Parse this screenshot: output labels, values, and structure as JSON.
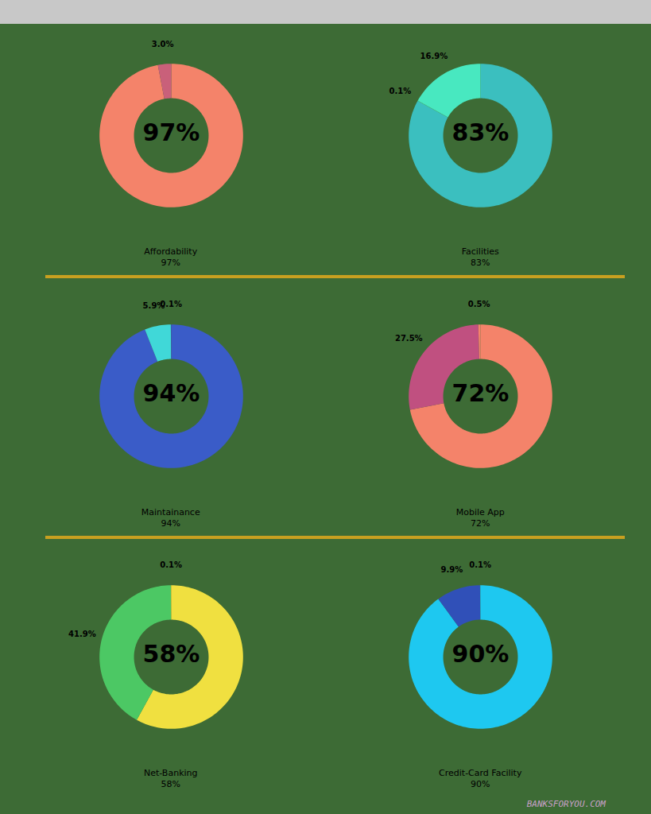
{
  "chart_data": [
    {
      "type": "donut",
      "title": "Affordability",
      "subtitle": "97%",
      "annotations": [
        "97%"
      ],
      "values": [
        97,
        3
      ],
      "colors": [
        "#F4836A",
        "#C9607A"
      ],
      "data_labels": true,
      "value_labels": [
        null,
        "3.0%"
      ]
    },
    {
      "type": "donut",
      "title": "Facilities",
      "subtitle": "83%",
      "annotations": [
        "83%"
      ],
      "values": [
        83,
        0.1,
        16.9
      ],
      "colors": [
        "#3BBFBF",
        "#48E8B0",
        "#48E8C0"
      ],
      "data_labels": true,
      "value_labels": [
        null,
        "0.1%",
        "16.9%"
      ]
    },
    {
      "type": "donut",
      "title": "Maintainance",
      "subtitle": "94%",
      "annotations": [
        "94%"
      ],
      "values": [
        94,
        5.9,
        0.1
      ],
      "colors": [
        "#3A5CC8",
        "#40D8D8",
        "#3A5CC8"
      ],
      "data_labels": true,
      "value_labels": [
        null,
        "5.9%",
        "0.1%"
      ]
    },
    {
      "type": "donut",
      "title": "Mobile App",
      "subtitle": "72%",
      "annotations": [
        "72%"
      ],
      "values": [
        72,
        27.5,
        0.5
      ],
      "colors": [
        "#F4836A",
        "#C05080",
        "#F4836A"
      ],
      "data_labels": true,
      "value_labels": [
        null,
        "27.5%",
        "0.5%"
      ]
    },
    {
      "type": "donut",
      "title": "Net-Banking",
      "subtitle": "58%",
      "annotations": [
        "58%"
      ],
      "values": [
        58,
        41.9,
        0.1
      ],
      "colors": [
        "#F0E040",
        "#4CC864",
        "#F0E040"
      ],
      "data_labels": true,
      "value_labels": [
        null,
        "41.9%",
        "0.1%"
      ]
    },
    {
      "type": "donut",
      "title": "Credit-Card Facility",
      "subtitle": "90%",
      "annotations": [
        "90%"
      ],
      "values": [
        90,
        9.9,
        0.1
      ],
      "colors": [
        "#1EC8F0",
        "#3050B8",
        "#1EC8F0"
      ],
      "data_labels": true,
      "value_labels": [
        null,
        "9.9%",
        "0.1%"
      ]
    }
  ],
  "annotations": [
    "BANKSFORYOU.COM"
  ]
}
